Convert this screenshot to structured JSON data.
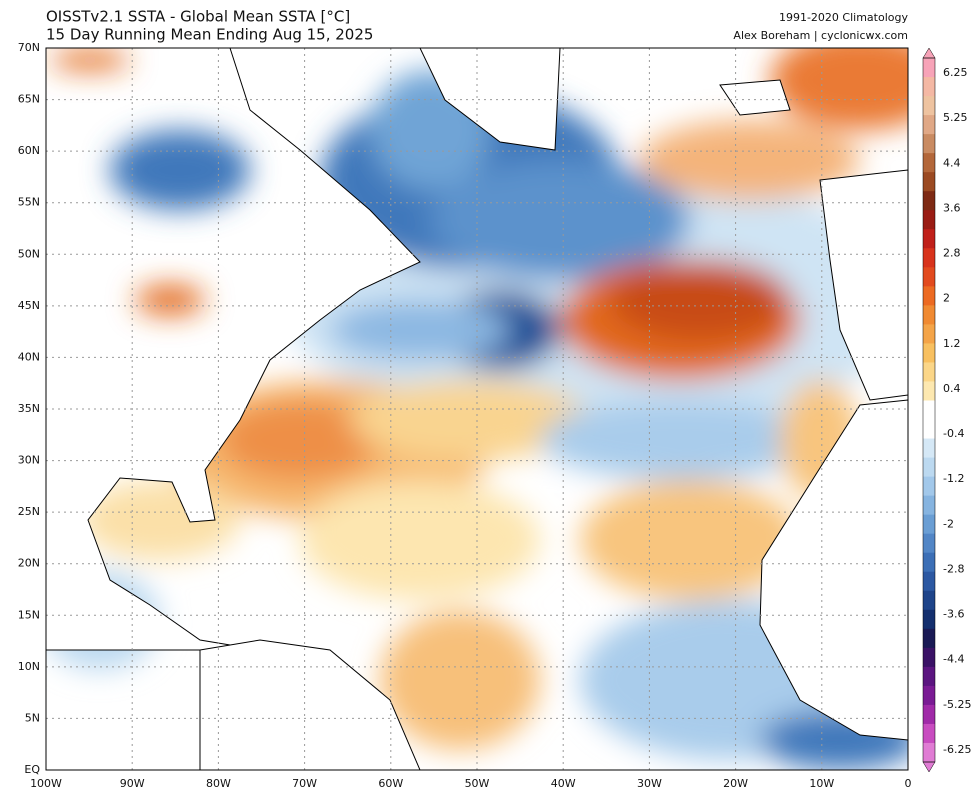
{
  "header": {
    "title": "OISSTv2.1 SSTA - Global Mean SSTA [°C]",
    "subtitle": "15 Day Running Mean Ending Aug 15, 2025",
    "climatology": "1991-2020 Climatology",
    "credit": "Alex Boreham | cyclonicwx.com"
  },
  "map": {
    "lat_labels": [
      "70N",
      "65N",
      "60N",
      "55N",
      "50N",
      "45N",
      "40N",
      "35N",
      "30N",
      "25N",
      "20N",
      "15N",
      "10N",
      "5N",
      "EQ"
    ],
    "lon_labels": [
      "100W",
      "90W",
      "80W",
      "70W",
      "60W",
      "50W",
      "40W",
      "30W",
      "20W",
      "10W",
      "0"
    ]
  },
  "colorbar": {
    "labels": [
      "6.25",
      "5.25",
      "4.4",
      "3.6",
      "2.8",
      "2",
      "1.2",
      "0.4",
      "-0.4",
      "-1.2",
      "-2",
      "-2.8",
      "-3.6",
      "-4.4",
      "-5.25",
      "-6.25"
    ]
  }
}
